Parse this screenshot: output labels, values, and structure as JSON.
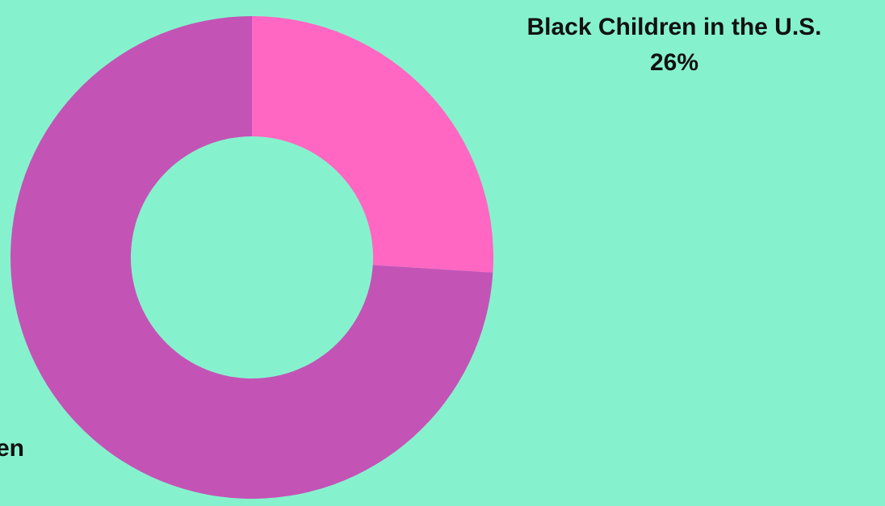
{
  "chart_data": {
    "type": "pie",
    "donut": true,
    "background": "#86F2CD",
    "slices": [
      {
        "label": "Black Children in the U.S.",
        "value_label": "26%",
        "value": 26,
        "color": "#FF67C3"
      },
      {
        "label_visible": "en",
        "value": 74,
        "color": "#C453B6"
      }
    ],
    "start_angle_deg": 0,
    "direction": "clockwise"
  }
}
